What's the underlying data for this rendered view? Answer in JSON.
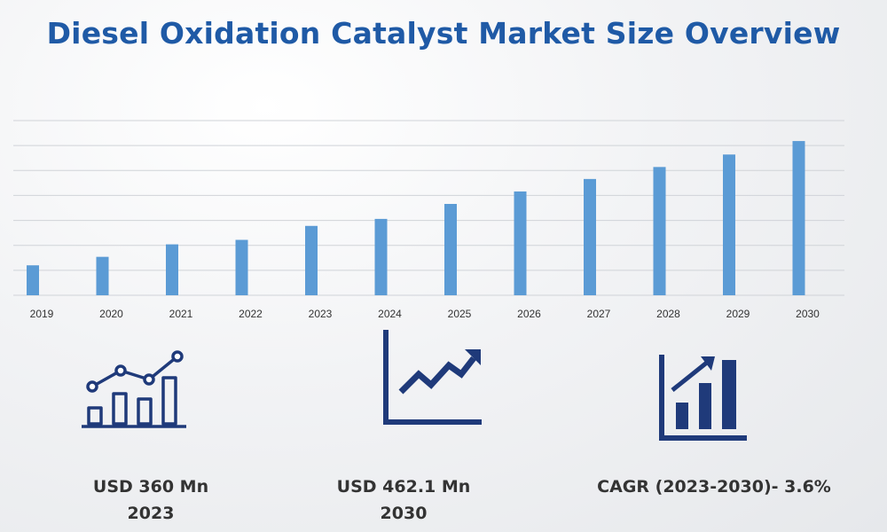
{
  "title": "Diesel Oxidation Catalyst Market Size Overview",
  "colors": {
    "bar": "#5b9bd5",
    "title": "#1f5aa6",
    "icon": "#1f3a7a",
    "grid": "#d0d3d8"
  },
  "chart_data": {
    "type": "bar",
    "title": "",
    "xlabel": "",
    "ylabel": "",
    "grid": true,
    "categories": [
      "2019",
      "2020",
      "2021",
      "2022",
      "2023",
      "2024",
      "2025",
      "2026",
      "2027",
      "2028",
      "2029",
      "2030"
    ],
    "values": [
      60,
      77,
      102,
      111,
      139,
      153,
      183,
      208,
      233,
      257,
      282,
      309
    ],
    "ylim": [
      0,
      350
    ]
  },
  "stats": [
    {
      "value": "USD 360 Mn",
      "year": "2023",
      "icon": "bar-chart-trend-icon"
    },
    {
      "value": "USD 462.1 Mn",
      "year": "2030",
      "icon": "zigzag-growth-icon"
    },
    {
      "value": "CAGR (2023-2030)- 3.6%",
      "year": "",
      "icon": "growth-bars-arrow-icon"
    }
  ]
}
